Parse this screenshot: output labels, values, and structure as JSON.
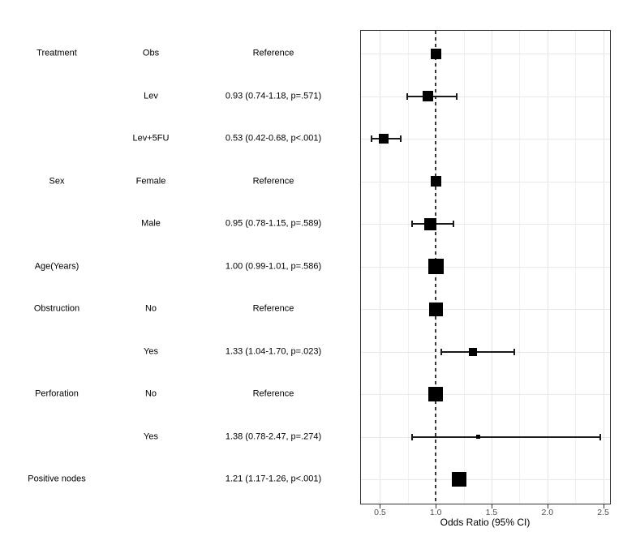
{
  "chart_data": {
    "type": "forest",
    "title": "",
    "xlabel": "Odds Ratio (95% CI)",
    "xlim": [
      0.322,
      2.569
    ],
    "x_major_ticks": [
      0.5,
      1.0,
      1.5,
      2.0,
      2.5
    ],
    "x_tick_labels": [
      "0.5",
      "1.0",
      "1.5",
      "2.0",
      "2.5"
    ],
    "x_minor_ticks": [
      0.75,
      1.25,
      1.75,
      2.25
    ],
    "reference_line": 1.0,
    "grid": true,
    "legend": "none",
    "rows": [
      {
        "group": "Treatment",
        "level": "Obs",
        "estimate_label": "Reference",
        "or": 1.0,
        "ci_low": null,
        "ci_high": null,
        "marker_size": 13
      },
      {
        "group": "",
        "level": "Lev",
        "estimate_label": "0.93 (0.74-1.18, p=.571)",
        "or": 0.93,
        "ci_low": 0.74,
        "ci_high": 1.18,
        "marker_size": 13
      },
      {
        "group": "",
        "level": "Lev+5FU",
        "estimate_label": "0.53 (0.42-0.68, p<.001)",
        "or": 0.53,
        "ci_low": 0.42,
        "ci_high": 0.68,
        "marker_size": 12
      },
      {
        "group": "Sex",
        "level": "Female",
        "estimate_label": "Reference",
        "or": 1.0,
        "ci_low": null,
        "ci_high": null,
        "marker_size": 13
      },
      {
        "group": "",
        "level": "Male",
        "estimate_label": "0.95 (0.78-1.15, p=.589)",
        "or": 0.95,
        "ci_low": 0.78,
        "ci_high": 1.15,
        "marker_size": 15
      },
      {
        "group": "Age(Years)",
        "level": "",
        "estimate_label": "1.00 (0.99-1.01, p=.586)",
        "or": 1.0,
        "ci_low": 0.99,
        "ci_high": 1.01,
        "marker_size": 19
      },
      {
        "group": "Obstruction",
        "level": "No",
        "estimate_label": "Reference",
        "or": 1.0,
        "ci_low": null,
        "ci_high": null,
        "marker_size": 17
      },
      {
        "group": "",
        "level": "Yes",
        "estimate_label": "1.33 (1.04-1.70, p=.023)",
        "or": 1.33,
        "ci_low": 1.04,
        "ci_high": 1.7,
        "marker_size": 10
      },
      {
        "group": "Perforation",
        "level": "No",
        "estimate_label": "Reference",
        "or": 1.0,
        "ci_low": null,
        "ci_high": null,
        "marker_size": 18
      },
      {
        "group": "",
        "level": "Yes",
        "estimate_label": "1.38 (0.78-2.47, p=.274)",
        "or": 1.38,
        "ci_low": 0.78,
        "ci_high": 2.47,
        "marker_size": 5
      },
      {
        "group": "Positive nodes",
        "level": "",
        "estimate_label": "1.21 (1.17-1.26, p<.001)",
        "or": 1.21,
        "ci_low": 1.17,
        "ci_high": 1.26,
        "marker_size": 18
      }
    ],
    "colors": {
      "marker": "#000000",
      "ci_line": "#1a1a1a",
      "reference_line": "#373737",
      "grid_major": "#e4e4e4",
      "grid_minor": "#f1f1f1",
      "panel_border": "#333333",
      "tick_label": "#4d4d4d",
      "axis_title": "#000000",
      "text": "#000000",
      "background": "#ffffff"
    }
  }
}
